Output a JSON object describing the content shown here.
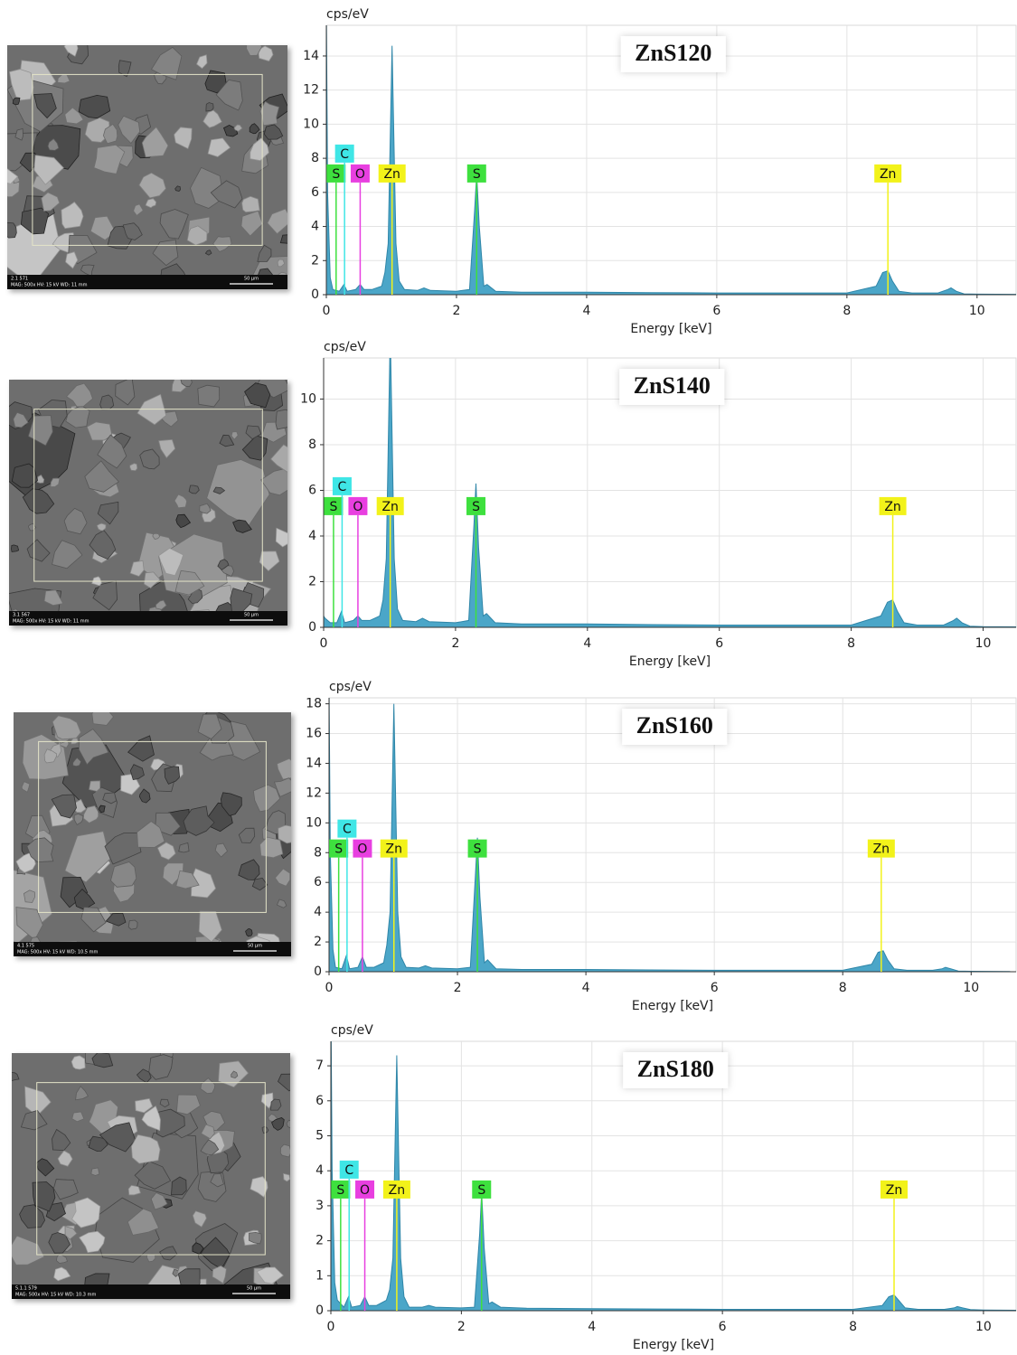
{
  "chart_data": [
    {
      "type": "area",
      "title": "ZnS120",
      "x_label": "Energy [keV]",
      "y_label": "cps/eV",
      "color": "#4ba6c8",
      "grid": true,
      "xlim": [
        0,
        10.6
      ],
      "ylim": [
        0,
        15.8
      ],
      "xticks": [
        0,
        2,
        4,
        6,
        8,
        10
      ],
      "yticks": [
        0,
        2,
        4,
        6,
        8,
        10,
        12,
        14
      ],
      "x": [
        0,
        0.02,
        0.06,
        0.1,
        0.2,
        0.27,
        0.32,
        0.45,
        0.52,
        0.58,
        0.7,
        0.85,
        0.9,
        0.95,
        1.01,
        1.07,
        1.12,
        1.2,
        1.4,
        1.5,
        1.6,
        2.0,
        2.2,
        2.28,
        2.31,
        2.35,
        2.42,
        2.47,
        2.6,
        3,
        4,
        5,
        6,
        7,
        8,
        8.45,
        8.55,
        8.63,
        8.7,
        8.8,
        9,
        9.4,
        9.55,
        9.6,
        9.68,
        9.8,
        10,
        10.6
      ],
      "values": [
        17,
        6,
        1,
        0.3,
        0.2,
        0.6,
        0.2,
        0.3,
        0.6,
        0.3,
        0.3,
        0.5,
        1.3,
        3,
        14.6,
        3,
        0.8,
        0.3,
        0.25,
        0.4,
        0.25,
        0.2,
        0.3,
        5,
        7.1,
        4,
        0.5,
        0.6,
        0.2,
        0.15,
        0.15,
        0.12,
        0.1,
        0.1,
        0.1,
        0.5,
        1.3,
        1.4,
        0.8,
        0.2,
        0.1,
        0.1,
        0.3,
        0.4,
        0.2,
        0.05,
        0.03,
        0.02
      ],
      "markers": [
        {
          "label": "S",
          "x": 0.15,
          "color": "#3ee03e"
        },
        {
          "label": "C",
          "x": 0.28,
          "color": "#3fe6e6"
        },
        {
          "label": "O",
          "x": 0.52,
          "color": "#e83fe0"
        },
        {
          "label": "Zn",
          "x": 1.01,
          "color": "#f2f21a"
        },
        {
          "label": "S",
          "x": 2.31,
          "color": "#3ee03e"
        },
        {
          "label": "Zn",
          "x": 8.63,
          "color": "#f2f21a"
        }
      ]
    },
    {
      "type": "area",
      "title": "ZnS140",
      "x_label": "Energy [keV]",
      "y_label": "cps/eV",
      "color": "#4ba6c8",
      "grid": true,
      "xlim": [
        0,
        10.5
      ],
      "ylim": [
        0,
        11.8
      ],
      "xticks": [
        0,
        2,
        4,
        6,
        8,
        10
      ],
      "yticks": [
        0,
        2,
        4,
        6,
        8,
        10
      ],
      "x": [
        0,
        0.02,
        0.06,
        0.1,
        0.2,
        0.27,
        0.32,
        0.45,
        0.52,
        0.58,
        0.7,
        0.85,
        0.9,
        0.95,
        1.01,
        1.07,
        1.12,
        1.2,
        1.4,
        1.5,
        1.6,
        2.0,
        2.2,
        2.28,
        2.31,
        2.35,
        2.42,
        2.47,
        2.6,
        3,
        4,
        5,
        6,
        7,
        8,
        8.45,
        8.55,
        8.63,
        8.7,
        8.8,
        9,
        9.4,
        9.55,
        9.6,
        9.68,
        9.8,
        10,
        10.6
      ],
      "values": [
        0.5,
        0.4,
        0.3,
        0.2,
        0.2,
        0.7,
        0.2,
        0.3,
        0.5,
        0.3,
        0.3,
        0.5,
        1.2,
        3,
        13,
        3,
        0.8,
        0.3,
        0.25,
        0.4,
        0.25,
        0.2,
        0.3,
        4.5,
        6.3,
        3.5,
        0.5,
        0.6,
        0.2,
        0.15,
        0.15,
        0.12,
        0.1,
        0.1,
        0.1,
        0.5,
        1.1,
        1.2,
        0.7,
        0.2,
        0.1,
        0.1,
        0.3,
        0.4,
        0.2,
        0.05,
        0.03,
        0.02
      ],
      "markers": [
        {
          "label": "S",
          "x": 0.15,
          "color": "#3ee03e"
        },
        {
          "label": "C",
          "x": 0.28,
          "color": "#3fe6e6"
        },
        {
          "label": "O",
          "x": 0.52,
          "color": "#e83fe0"
        },
        {
          "label": "Zn",
          "x": 1.01,
          "color": "#f2f21a"
        },
        {
          "label": "S",
          "x": 2.31,
          "color": "#3ee03e"
        },
        {
          "label": "Zn",
          "x": 8.63,
          "color": "#f2f21a"
        }
      ]
    },
    {
      "type": "area",
      "title": "ZnS160",
      "x_label": "Energy [keV]",
      "y_label": "cps/eV",
      "color": "#4ba6c8",
      "grid": true,
      "xlim": [
        0,
        10.7
      ],
      "ylim": [
        0,
        18.4
      ],
      "xticks": [
        0,
        2,
        4,
        6,
        8,
        10
      ],
      "yticks": [
        0,
        2,
        4,
        6,
        8,
        10,
        12,
        14,
        16,
        18
      ],
      "x": [
        0,
        0.02,
        0.06,
        0.1,
        0.2,
        0.27,
        0.32,
        0.45,
        0.52,
        0.58,
        0.7,
        0.85,
        0.9,
        0.95,
        1.01,
        1.07,
        1.12,
        1.2,
        1.4,
        1.5,
        1.6,
        2.0,
        2.2,
        2.28,
        2.31,
        2.35,
        2.42,
        2.47,
        2.6,
        3,
        4,
        5,
        6,
        7,
        8,
        8.45,
        8.55,
        8.63,
        8.7,
        8.8,
        9,
        9.4,
        9.55,
        9.6,
        9.68,
        9.8,
        10,
        10.6
      ],
      "values": [
        19,
        8,
        1.5,
        0.3,
        0.2,
        1.1,
        0.2,
        0.3,
        1.0,
        0.3,
        0.3,
        0.6,
        1.8,
        4,
        18,
        4,
        1,
        0.3,
        0.25,
        0.4,
        0.25,
        0.2,
        0.3,
        6.5,
        9,
        5,
        0.6,
        0.8,
        0.2,
        0.15,
        0.15,
        0.12,
        0.1,
        0.1,
        0.1,
        0.5,
        1.3,
        1.4,
        0.8,
        0.2,
        0.1,
        0.1,
        0.2,
        0.3,
        0.2,
        0.05,
        0.03,
        0.02
      ],
      "markers": [
        {
          "label": "S",
          "x": 0.15,
          "color": "#3ee03e"
        },
        {
          "label": "C",
          "x": 0.28,
          "color": "#3fe6e6"
        },
        {
          "label": "O",
          "x": 0.52,
          "color": "#e83fe0"
        },
        {
          "label": "Zn",
          "x": 1.01,
          "color": "#f2f21a"
        },
        {
          "label": "S",
          "x": 2.31,
          "color": "#3ee03e"
        },
        {
          "label": "Zn",
          "x": 8.6,
          "color": "#f2f21a"
        }
      ]
    },
    {
      "type": "area",
      "title": "ZnS180",
      "x_label": "Energy [keV]",
      "y_label": "cps/eV",
      "color": "#4ba6c8",
      "grid": true,
      "xlim": [
        0,
        10.5
      ],
      "ylim": [
        0,
        7.7
      ],
      "xticks": [
        0,
        2,
        4,
        6,
        8,
        10
      ],
      "yticks": [
        0,
        1,
        2,
        3,
        4,
        5,
        6,
        7
      ],
      "x": [
        0,
        0.02,
        0.06,
        0.1,
        0.2,
        0.27,
        0.32,
        0.45,
        0.52,
        0.58,
        0.7,
        0.85,
        0.9,
        0.95,
        1.01,
        1.07,
        1.12,
        1.2,
        1.4,
        1.5,
        1.6,
        2.0,
        2.2,
        2.28,
        2.31,
        2.35,
        2.42,
        2.47,
        2.6,
        3,
        4,
        5,
        6,
        7,
        8,
        8.45,
        8.55,
        8.63,
        8.7,
        8.8,
        9,
        9.4,
        9.55,
        9.6,
        9.68,
        9.8,
        10,
        10.6
      ],
      "values": [
        9,
        4,
        0.8,
        0.3,
        0.1,
        0.4,
        0.1,
        0.15,
        0.4,
        0.15,
        0.15,
        0.3,
        0.6,
        1.5,
        7.3,
        1.5,
        0.4,
        0.1,
        0.1,
        0.15,
        0.1,
        0.08,
        0.1,
        2.2,
        3.4,
        1.8,
        0.2,
        0.25,
        0.1,
        0.07,
        0.06,
        0.05,
        0.04,
        0.04,
        0.04,
        0.15,
        0.4,
        0.45,
        0.3,
        0.08,
        0.04,
        0.04,
        0.08,
        0.12,
        0.08,
        0.03,
        0.02,
        0.01
      ],
      "markers": [
        {
          "label": "S",
          "x": 0.15,
          "color": "#3ee03e"
        },
        {
          "label": "C",
          "x": 0.28,
          "color": "#3fe6e6"
        },
        {
          "label": "O",
          "x": 0.52,
          "color": "#e83fe0"
        },
        {
          "label": "Zn",
          "x": 1.01,
          "color": "#f2f21a"
        },
        {
          "label": "S",
          "x": 2.31,
          "color": "#3ee03e"
        },
        {
          "label": "Zn",
          "x": 8.63,
          "color": "#f2f21a"
        }
      ]
    }
  ],
  "sem_images": [
    {
      "id": "2.1 571",
      "info": "MAG: 500x  HV: 15 kV  WD: 11 mm",
      "scale": "50 µm"
    },
    {
      "id": "3.1 567",
      "info": "MAG: 500x  HV: 15 kV  WD: 11 mm",
      "scale": "50 µm"
    },
    {
      "id": "4.1 575",
      "info": "MAG: 500x  HV: 15 kV  WD: 10.5 mm",
      "scale": "50 µm"
    },
    {
      "id": "5.1.1 579",
      "info": "MAG: 500x  HV: 15 kV  WD: 10.3 mm",
      "scale": "50 µm"
    }
  ]
}
